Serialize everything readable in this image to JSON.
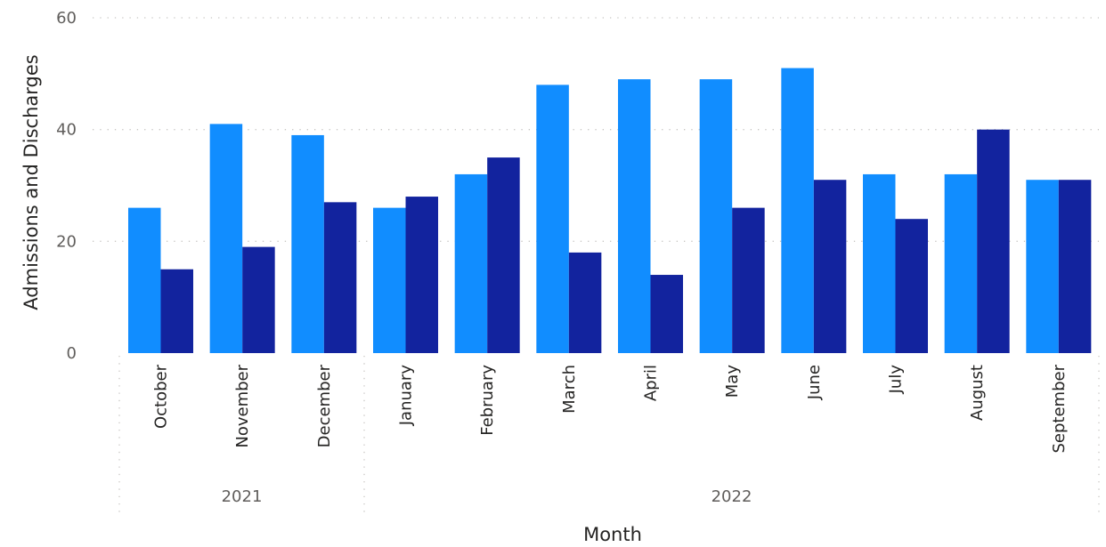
{
  "chart_data": {
    "type": "bar",
    "xlabel": "Month",
    "ylabel": "Admissions and Discharges",
    "ylim": [
      0,
      60
    ],
    "yticks": [
      0,
      20,
      40,
      60
    ],
    "grid": true,
    "legend": "none",
    "categories": [
      "October",
      "November",
      "December",
      "January",
      "February",
      "March",
      "April",
      "May",
      "June",
      "July",
      "August",
      "September"
    ],
    "years": [
      {
        "label": "2021",
        "count": 3
      },
      {
        "label": "2022",
        "count": 9
      }
    ],
    "series": [
      {
        "color": "#118dff",
        "values": [
          26,
          41,
          39,
          26,
          32,
          48,
          49,
          49,
          51,
          32,
          32,
          31
        ]
      },
      {
        "color": "#12239e",
        "values": [
          15,
          19,
          27,
          28,
          35,
          18,
          14,
          26,
          31,
          24,
          40,
          31
        ]
      }
    ]
  }
}
